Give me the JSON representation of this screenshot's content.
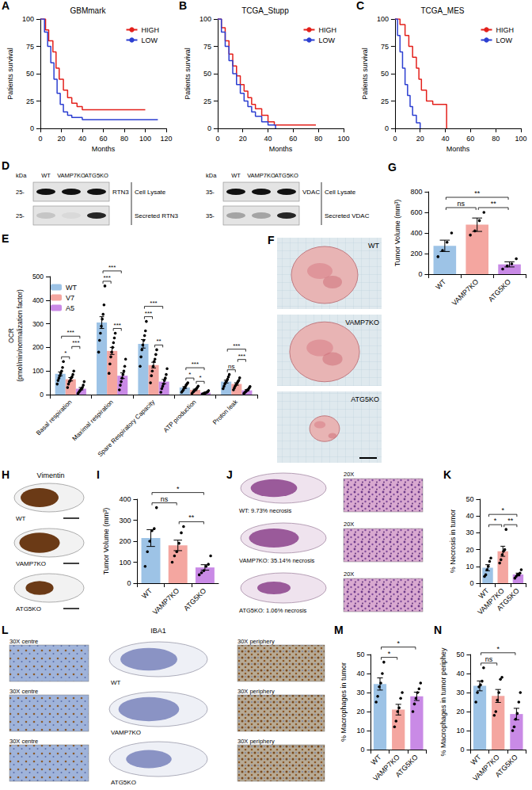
{
  "chart_data": [
    {
      "panel": "A",
      "type": "line",
      "title": "GBMmark",
      "x_label": "Months",
      "y_label": "Patients survival",
      "line_style": "step",
      "legend": "upper right",
      "xlim": [
        0,
        120
      ],
      "xticks": [
        0,
        20,
        40,
        60,
        80,
        100,
        120
      ],
      "ylim": [
        0,
        100
      ],
      "yticks": [
        0,
        25,
        50,
        75,
        100
      ],
      "series": [
        {
          "name": "HIGH",
          "color": "#e3201b",
          "x": [
            0,
            5,
            8,
            12,
            15,
            18,
            22,
            26,
            30,
            35,
            40,
            100
          ],
          "values": [
            100,
            90,
            80,
            70,
            55,
            45,
            35,
            28,
            23,
            20,
            17,
            17
          ]
        },
        {
          "name": "LOW",
          "color": "#2c3fd1",
          "x": [
            0,
            4,
            7,
            10,
            13,
            16,
            19,
            22,
            26,
            30,
            40,
            112
          ],
          "values": [
            100,
            88,
            75,
            60,
            45,
            32,
            22,
            15,
            12,
            10,
            8,
            8
          ]
        }
      ]
    },
    {
      "panel": "B",
      "type": "line",
      "title": "TCGA_Stupp",
      "x_label": "Months",
      "y_label": "Patients survival",
      "line_style": "step",
      "legend": "upper right",
      "xlim": [
        0,
        100
      ],
      "xticks": [
        0,
        20,
        40,
        60,
        80,
        100
      ],
      "ylim": [
        0,
        100
      ],
      "yticks": [
        0,
        25,
        50,
        75,
        100
      ],
      "series": [
        {
          "name": "HIGH",
          "color": "#e3201b",
          "x": [
            0,
            3,
            6,
            9,
            12,
            15,
            18,
            21,
            24,
            27,
            30,
            35,
            40,
            45,
            78
          ],
          "values": [
            100,
            92,
            80,
            68,
            57,
            48,
            40,
            34,
            28,
            22,
            18,
            12,
            6,
            3,
            3
          ]
        },
        {
          "name": "LOW",
          "color": "#2c3fd1",
          "x": [
            0,
            3,
            6,
            9,
            12,
            15,
            18,
            21,
            24,
            27,
            30,
            35,
            40,
            46
          ],
          "values": [
            100,
            88,
            75,
            62,
            50,
            40,
            32,
            25,
            20,
            15,
            11,
            6,
            3,
            0
          ]
        }
      ]
    },
    {
      "panel": "C",
      "type": "line",
      "title": "TCGA_MES",
      "x_label": "Months",
      "y_label": "Patients survival",
      "line_style": "step",
      "legend": "upper right",
      "xlim": [
        0,
        100
      ],
      "xticks": [
        0,
        20,
        40,
        60,
        80,
        100
      ],
      "ylim": [
        0,
        100
      ],
      "yticks": [
        0,
        25,
        50,
        75,
        100
      ],
      "series": [
        {
          "name": "HIGH",
          "color": "#e3201b",
          "x": [
            0,
            4,
            8,
            11,
            14,
            17,
            19,
            21,
            25,
            30,
            40,
            41
          ],
          "values": [
            100,
            95,
            85,
            75,
            65,
            55,
            45,
            35,
            25,
            22,
            22,
            0
          ]
        },
        {
          "name": "LOW",
          "color": "#2c3fd1",
          "x": [
            0,
            2,
            4,
            6,
            8,
            10,
            12,
            14,
            17,
            20
          ],
          "values": [
            100,
            85,
            70,
            55,
            40,
            30,
            20,
            12,
            5,
            0
          ]
        }
      ]
    },
    {
      "panel": "E",
      "type": "bar",
      "y_label": "OCR\n(pmol/min/normalization factor)",
      "legend": "upper left",
      "categories": [
        "Basal respiration",
        "Maximal respiration",
        "Spare Respiratory Capacity",
        "ATP production",
        "Proton leak"
      ],
      "ylim": [
        0,
        500
      ],
      "yticks": [
        0,
        100,
        200,
        300,
        400,
        500
      ],
      "series": [
        {
          "name": "WT",
          "color": "#9dc3e6",
          "values": [
            88,
            305,
            215,
            30,
            55
          ],
          "errors": [
            8,
            25,
            18,
            4,
            6
          ],
          "points": [
            [
              45,
              60,
              70,
              80,
              90,
              100,
              115,
              140
            ],
            [
              180,
              230,
              260,
              290,
              320,
              340,
              380,
              460
            ],
            [
              120,
              160,
              190,
              210,
              230,
              250,
              270,
              310
            ],
            [
              10,
              15,
              20,
              28,
              32,
              40,
              45,
              50
            ],
            [
              25,
              35,
              45,
              52,
              58,
              65,
              75,
              85
            ]
          ]
        },
        {
          "name": "V7",
          "color": "#f4a6a0",
          "values": [
            65,
            185,
            125,
            20,
            45
          ],
          "errors": [
            7,
            15,
            12,
            3,
            5
          ],
          "points": [
            [
              30,
              45,
              55,
              60,
              70,
              75,
              85,
              100
            ],
            [
              90,
              130,
              160,
              180,
              200,
              220,
              240,
              260
            ],
            [
              50,
              80,
              100,
              120,
              140,
              150,
              170,
              190
            ],
            [
              5,
              10,
              14,
              18,
              22,
              25,
              30,
              36
            ],
            [
              20,
              28,
              36,
              42,
              48,
              55,
              60,
              71
            ]
          ]
        },
        {
          "name": "A5",
          "color": "#c98ae6",
          "values": [
            25,
            80,
            55,
            8,
            18
          ],
          "errors": [
            5,
            12,
            9,
            1.5,
            3
          ],
          "points": [
            [
              5,
              10,
              15,
              20,
              25,
              30,
              40,
              55
            ],
            [
              20,
              40,
              55,
              70,
              85,
              100,
              120,
              150
            ],
            [
              10,
              25,
              35,
              45,
              60,
              70,
              85,
              110
            ],
            [
              2,
              3,
              5,
              7,
              8,
              10,
              12,
              17
            ],
            [
              5,
              8,
              12,
              15,
              20,
              22,
              28,
              34
            ]
          ]
        }
      ],
      "significance": [
        {
          "category": 0,
          "pair": [
            0,
            1
          ],
          "label": "*"
        },
        {
          "category": 0,
          "pair": [
            1,
            2
          ],
          "label": "***"
        },
        {
          "category": 0,
          "pair": [
            0,
            2
          ],
          "label": "***"
        },
        {
          "category": 1,
          "pair": [
            0,
            1
          ],
          "label": "***"
        },
        {
          "category": 1,
          "pair": [
            1,
            2
          ],
          "label": "***"
        },
        {
          "category": 1,
          "pair": [
            0,
            2
          ],
          "label": "***"
        },
        {
          "category": 2,
          "pair": [
            0,
            1
          ],
          "label": "***"
        },
        {
          "category": 2,
          "pair": [
            1,
            2
          ],
          "label": "**"
        },
        {
          "category": 2,
          "pair": [
            0,
            2
          ],
          "label": "***"
        },
        {
          "category": 3,
          "pair": [
            0,
            1
          ],
          "label": "*"
        },
        {
          "category": 3,
          "pair": [
            1,
            2
          ],
          "label": "*"
        },
        {
          "category": 3,
          "pair": [
            0,
            2
          ],
          "label": "***"
        },
        {
          "category": 4,
          "pair": [
            0,
            1
          ],
          "label": "ns"
        },
        {
          "category": 4,
          "pair": [
            1,
            2
          ],
          "label": "***"
        },
        {
          "category": 4,
          "pair": [
            0,
            2
          ],
          "label": "***"
        }
      ]
    },
    {
      "panel": "G",
      "type": "bar",
      "y_label": "Tumor Volume (mm³)",
      "categories": [
        "WT",
        "VAMP7KO",
        "ATG5KO"
      ],
      "colors": [
        "#9dc3e6",
        "#f4a6a0",
        "#c98ae6"
      ],
      "values": [
        275,
        480,
        95
      ],
      "errors": [
        55,
        65,
        25
      ],
      "points": [
        [
          170,
          230,
          310,
          400
        ],
        [
          380,
          420,
          520,
          600
        ],
        [
          50,
          80,
          100,
          150
        ]
      ],
      "ylim": [
        0,
        800
      ],
      "yticks": [
        0,
        200,
        400,
        600,
        800
      ],
      "significance": [
        {
          "pair": [
            0,
            1
          ],
          "label": "ns"
        },
        {
          "pair": [
            1,
            2
          ],
          "label": "**"
        },
        {
          "pair": [
            0,
            2
          ],
          "label": "**"
        }
      ]
    },
    {
      "panel": "I",
      "type": "bar",
      "y_label": "Tumor Volume (mm³)",
      "categories": [
        "WT",
        "VAMP7KO",
        "ATG5KO"
      ],
      "colors": [
        "#9dc3e6",
        "#f4a6a0",
        "#c98ae6"
      ],
      "values": [
        215,
        180,
        75
      ],
      "errors": [
        40,
        25,
        13
      ],
      "points": [
        [
          80,
          150,
          200,
          250,
          260,
          360
        ],
        [
          100,
          130,
          150,
          190,
          240,
          270
        ],
        [
          40,
          50,
          60,
          80,
          90,
          130
        ]
      ],
      "ylim": [
        0,
        400
      ],
      "yticks": [
        0,
        100,
        200,
        300,
        400
      ],
      "significance": [
        {
          "pair": [
            0,
            1
          ],
          "label": "ns"
        },
        {
          "pair": [
            1,
            2
          ],
          "label": "**"
        },
        {
          "pair": [
            0,
            2
          ],
          "label": "*"
        }
      ]
    },
    {
      "panel": "K",
      "type": "bar",
      "y_label": "% Necrosis in tumor",
      "categories": [
        "WT",
        "VAMP7KO",
        "ATG5KO"
      ],
      "colors": [
        "#9dc3e6",
        "#f4a6a0",
        "#c98ae6"
      ],
      "values": [
        9.2,
        19,
        5.2
      ],
      "errors": [
        1.8,
        3,
        0.8
      ],
      "points": [
        [
          4,
          5,
          8,
          10,
          13,
          15
        ],
        [
          12,
          14,
          17,
          19,
          20,
          32
        ],
        [
          3,
          4,
          5,
          5,
          6,
          8
        ]
      ],
      "ylim": [
        0,
        50
      ],
      "yticks": [
        0,
        10,
        20,
        30,
        40,
        50
      ],
      "significance": [
        {
          "pair": [
            0,
            1
          ],
          "label": "*"
        },
        {
          "pair": [
            1,
            2
          ],
          "label": "**"
        },
        {
          "pair": [
            0,
            2
          ],
          "label": "*"
        }
      ]
    },
    {
      "panel": "M",
      "type": "bar",
      "y_label": "% Macrophages in tumor",
      "categories": [
        "WT",
        "VAMP7KO",
        "ATG5KO"
      ],
      "colors": [
        "#9dc3e6",
        "#f4a6a0",
        "#c98ae6"
      ],
      "values": [
        34.5,
        21,
        28
      ],
      "errors": [
        3.2,
        2.8,
        2.2
      ],
      "points": [
        [
          25,
          28,
          33,
          35,
          40,
          46
        ],
        [
          12,
          15,
          20,
          22,
          27,
          30
        ],
        [
          20,
          24,
          27,
          30,
          32,
          35
        ]
      ],
      "ylim": [
        0,
        50
      ],
      "yticks": [
        0,
        10,
        20,
        30,
        40,
        50
      ],
      "significance": [
        {
          "pair": [
            0,
            1
          ],
          "label": "*"
        },
        {
          "pair": [
            0,
            2
          ],
          "label": "*"
        }
      ]
    },
    {
      "panel": "N",
      "type": "bar",
      "y_label": "% Macrophages in tumor periphey",
      "categories": [
        "WT",
        "VAMP7KO",
        "ATG5KO"
      ],
      "colors": [
        "#9dc3e6",
        "#f4a6a0",
        "#c98ae6"
      ],
      "values": [
        33.5,
        28.2,
        18.7
      ],
      "errors": [
        2.6,
        3.4,
        3
      ],
      "points": [
        [
          25,
          30,
          33,
          34,
          36,
          43
        ],
        [
          18,
          20,
          26,
          30,
          37,
          38
        ],
        [
          10,
          12,
          16,
          19,
          25,
          30
        ]
      ],
      "ylim": [
        0,
        50
      ],
      "yticks": [
        0,
        10,
        20,
        30,
        40,
        50
      ],
      "significance": [
        {
          "pair": [
            0,
            1
          ],
          "label": "ns"
        },
        {
          "pair": [
            0,
            2
          ],
          "label": "*"
        }
      ]
    }
  ],
  "image_panels": [
    {
      "panel": "D",
      "blots": [
        {
          "unit": "kDa",
          "lanes": [
            "WT",
            "VAMP7KO",
            "ATG5KO"
          ],
          "rows": [
            {
              "marker": "25-",
              "protein": "RTN3",
              "label": "Cell Lysate",
              "bands": [
                1,
                1,
                1
              ]
            },
            {
              "marker": "25-",
              "label": "Secreted RTN3",
              "bands": [
                0.15,
                0.05,
                0.9
              ]
            }
          ]
        },
        {
          "unit": "kDa",
          "lanes": [
            "WT",
            "VAMP7KO",
            "ATG5KO"
          ],
          "rows": [
            {
              "marker": "35-",
              "protein": "VDAC",
              "label": "Cell Lysate",
              "bands": [
                1,
                1,
                1
              ]
            },
            {
              "marker": "35-",
              "label": "Secreted VDAC",
              "bands": [
                0.3,
                0.3,
                0.9
              ]
            }
          ]
        }
      ]
    },
    {
      "panel": "F",
      "rows": [
        {
          "label": "WT",
          "relative_size": 1
        },
        {
          "label": "VAMP7KO",
          "relative_size": 1.05
        },
        {
          "label": "ATG5KO",
          "relative_size": 0.45
        }
      ]
    },
    {
      "panel": "H",
      "stain": "Vimentin",
      "rows": [
        {
          "label": "WT",
          "relative_size": 0.75
        },
        {
          "label": "VAMP7KO",
          "relative_size": 0.8
        },
        {
          "label": "ATG5KO",
          "relative_size": 0.55
        }
      ]
    },
    {
      "panel": "J",
      "rows": [
        {
          "caption": "WT: 9.73% necrosis",
          "zoom": "20X",
          "relative_size": 0.7
        },
        {
          "caption": "VAMP7KO: 35.14% necrosis",
          "zoom": "20X",
          "relative_size": 0.75
        },
        {
          "caption": "ATG5KO: 1.06% necrosis",
          "zoom": "20X",
          "relative_size": 0.5
        }
      ]
    },
    {
      "panel": "L",
      "stain": "IBA1",
      "rows": [
        {
          "label": "WT",
          "centre": "30X centre",
          "periphery": "30X periphery",
          "relative_size": 0.75
        },
        {
          "label": "VAMP7KO",
          "centre": "30X centre",
          "periphery": "30X periphery",
          "relative_size": 0.8
        },
        {
          "label": "ATG5KO",
          "centre": "30X centre",
          "periphery": "30X periphery",
          "relative_size": 0.6
        }
      ]
    }
  ]
}
